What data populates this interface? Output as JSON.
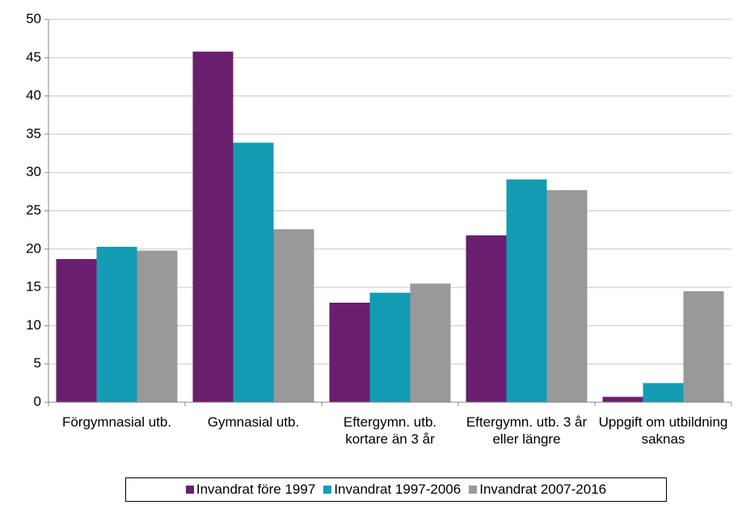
{
  "chart_data": {
    "type": "bar",
    "categories": [
      "Förgymnasial utb.",
      "Gymnasial utb.",
      "Eftergymn. utb. kortare än 3 år",
      "Eftergymn. utb. 3 år eller längre",
      "Uppgift om utbildning saknas"
    ],
    "series": [
      {
        "name": "Invandrat före 1997",
        "color": "#6a1f6e",
        "values": [
          18.7,
          45.8,
          13.0,
          21.8,
          0.7
        ]
      },
      {
        "name": "Invandrat 1997-2006",
        "color": "#139cb4",
        "values": [
          20.3,
          33.9,
          14.3,
          29.1,
          2.5
        ]
      },
      {
        "name": "Invandrat 2007-2016",
        "color": "#999999",
        "values": [
          19.8,
          22.6,
          15.5,
          27.7,
          14.5
        ]
      }
    ],
    "ylim": [
      0,
      50
    ],
    "yticks": [
      0,
      5,
      10,
      15,
      20,
      25,
      30,
      35,
      40,
      45,
      50
    ],
    "grid": true,
    "legend": "bottom"
  }
}
